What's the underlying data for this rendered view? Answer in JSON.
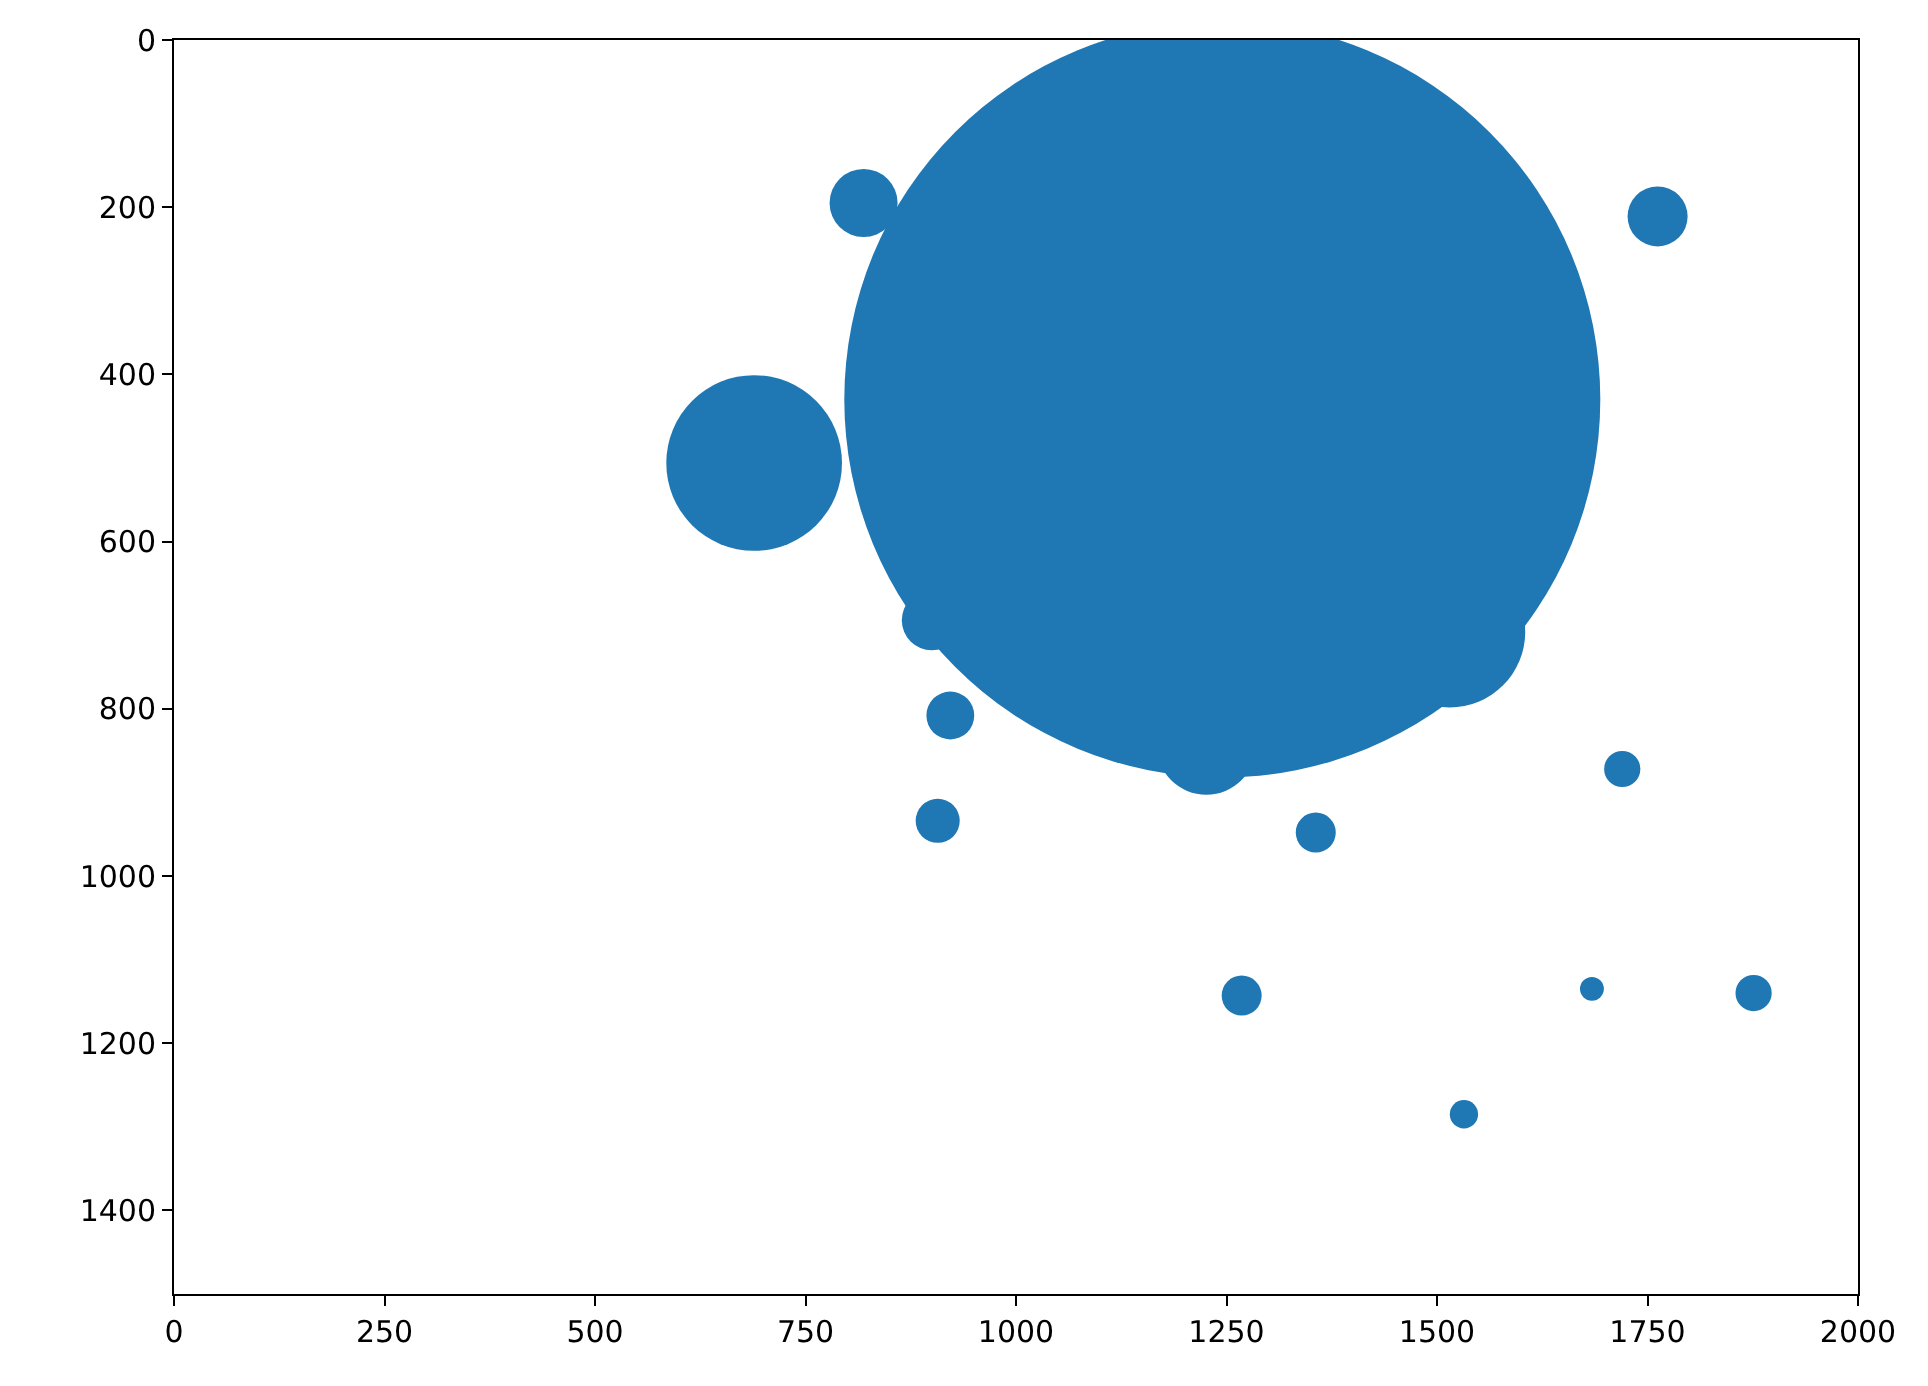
{
  "chart_data": {
    "type": "bubble",
    "x": [
      1245,
      819,
      1762,
      689,
      922,
      907,
      1356,
      1720,
      1268,
      1684,
      1876,
      1532,
      1226,
      900,
      1515
    ],
    "values": [
      430,
      195,
      211,
      506,
      808,
      934,
      948,
      872,
      1143,
      1135,
      1140,
      1285,
      843,
      694,
      708
    ],
    "sizes": [
      1,
      0.0081,
      0.0063,
      0.054,
      0.004,
      0.0034,
      0.0028,
      0.0023,
      0.0028,
      0.001,
      0.0023,
      0.0014,
      0.0175,
      0.0063,
      0.04
    ],
    "color": "#1f77b4",
    "xlim": [
      0,
      2000
    ],
    "xticks": [
      0,
      250,
      500,
      750,
      1000,
      1250,
      1500,
      1750,
      2000
    ],
    "ylim": [
      1500,
      0
    ],
    "yticks": [
      0,
      200,
      400,
      600,
      800,
      1000,
      1200,
      1400
    ]
  }
}
